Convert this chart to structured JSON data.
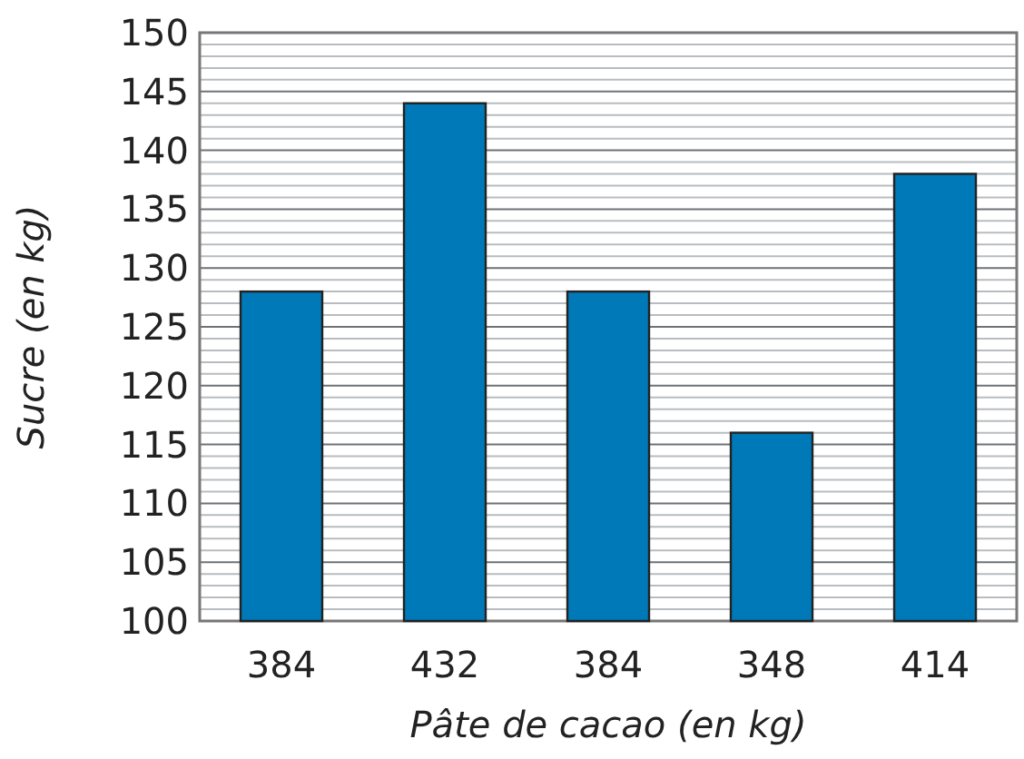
{
  "chart_data": {
    "type": "bar",
    "xlabel": "Pâte de cacao (en kg)",
    "ylabel": "Sucre (en kg)",
    "categories": [
      "384",
      "432",
      "384",
      "348",
      "414"
    ],
    "values": [
      128,
      144,
      128,
      116,
      138
    ],
    "color": "#0079b8",
    "ylim": [
      100,
      150
    ],
    "yticks": [
      100,
      105,
      110,
      115,
      120,
      125,
      130,
      135,
      140,
      145,
      150
    ],
    "grid": "y"
  }
}
